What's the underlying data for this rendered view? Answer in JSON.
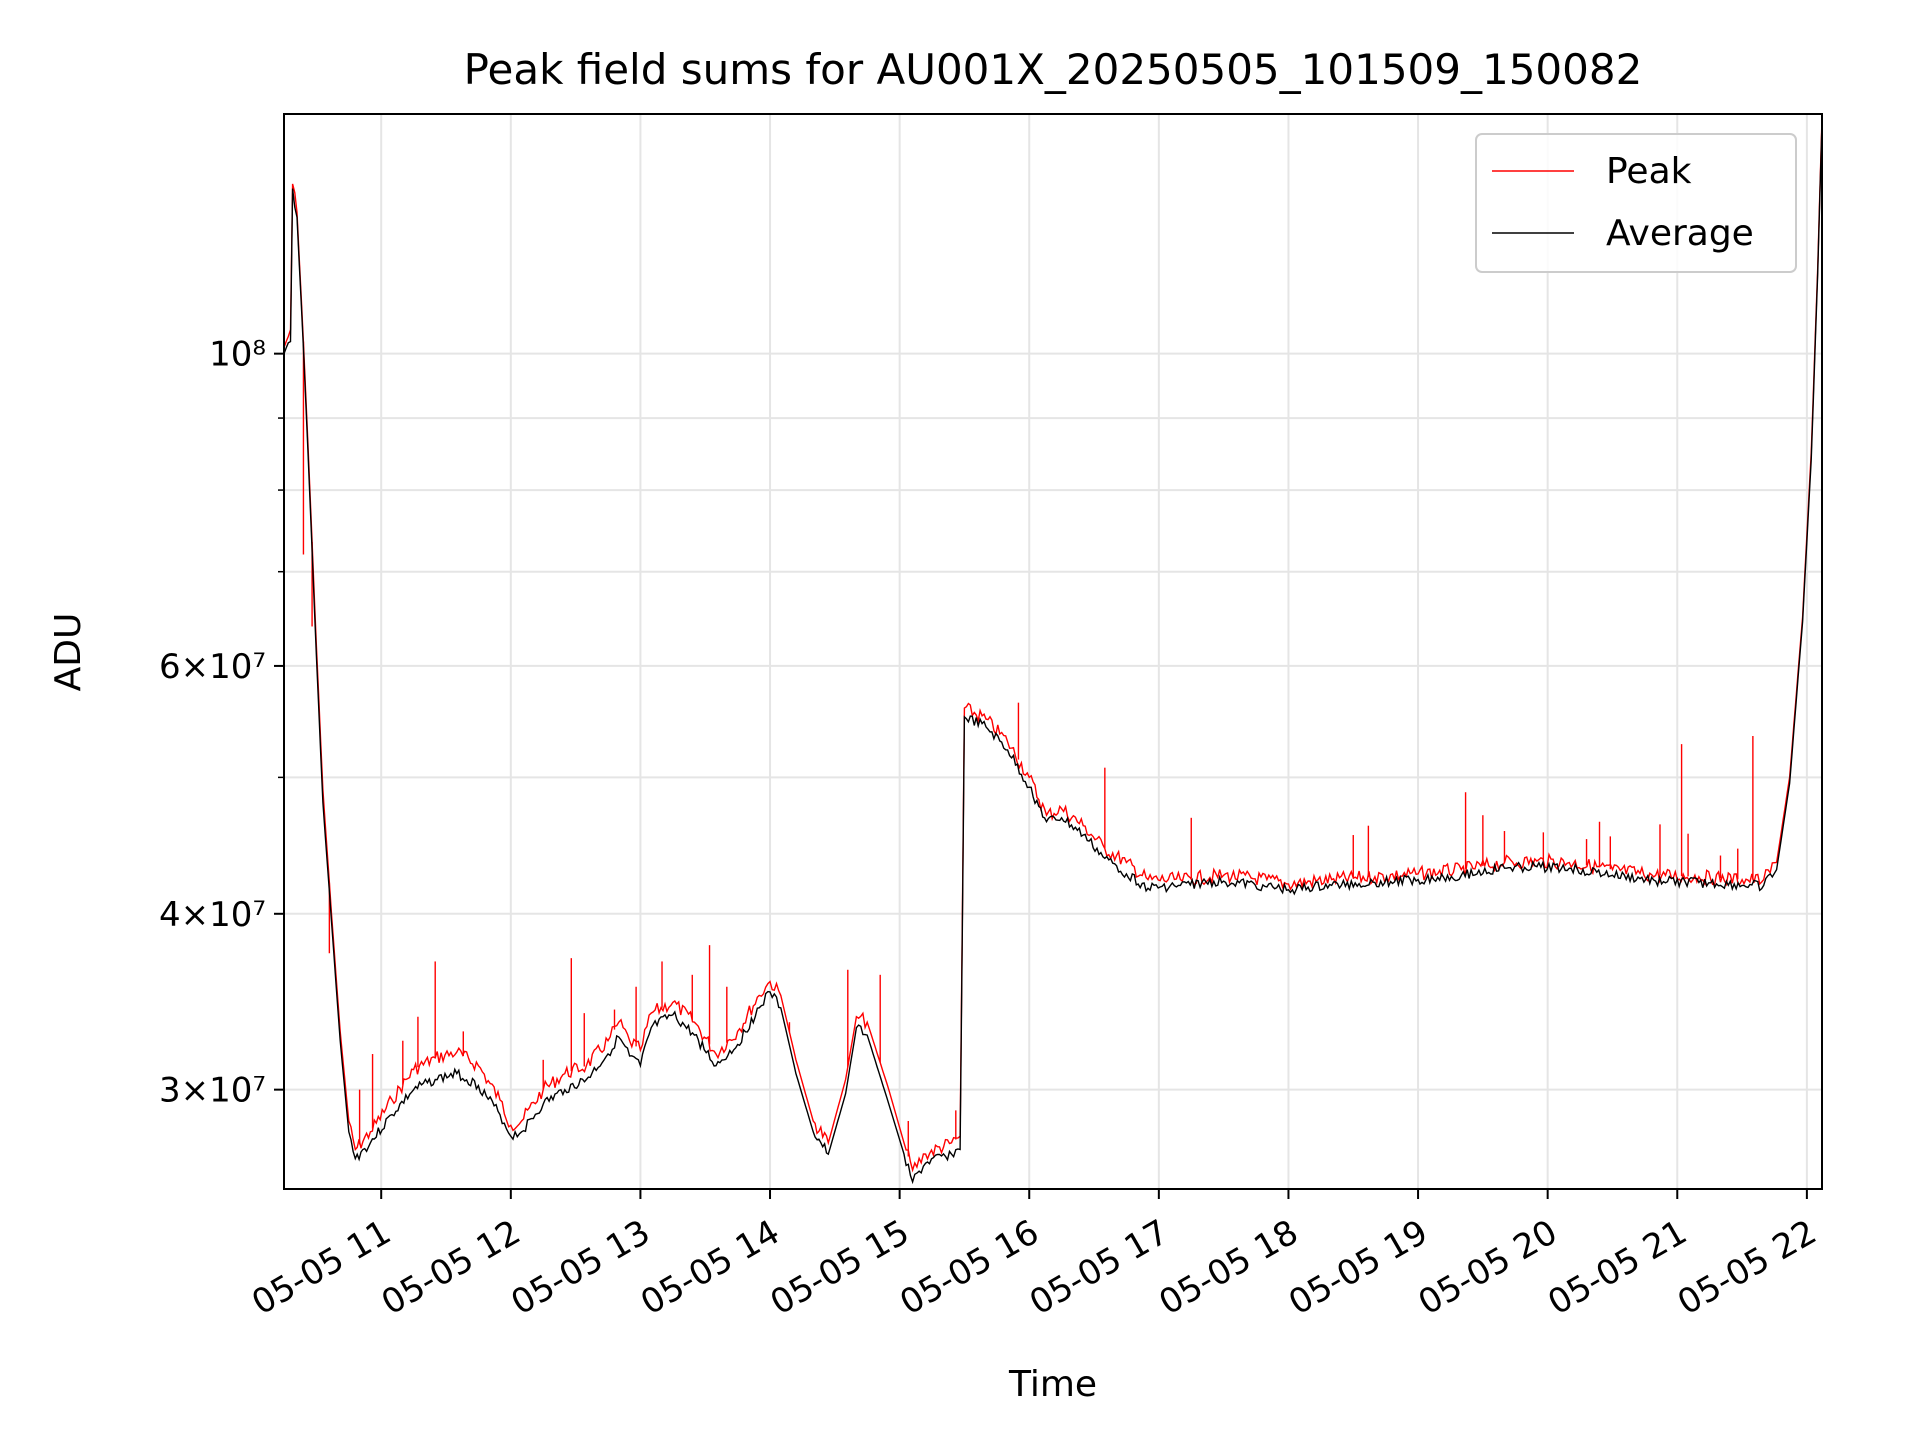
{
  "chart_data": {
    "type": "line",
    "title": "Peak field sums for AU001X_20250505_101509_150082",
    "xlabel": "Time",
    "ylabel": "ADU",
    "yscale": "log",
    "ylim": [
      25500000,
      148000000
    ],
    "xlim": [
      "2025-05-05 10:15",
      "2025-05-05 22:07"
    ],
    "grid": true,
    "legend": "top-right",
    "x_ticks": [
      {
        "t": "2025-05-05 11:00",
        "label": "05-05 11"
      },
      {
        "t": "2025-05-05 12:00",
        "label": "05-05 12"
      },
      {
        "t": "2025-05-05 13:00",
        "label": "05-05 13"
      },
      {
        "t": "2025-05-05 14:00",
        "label": "05-05 14"
      },
      {
        "t": "2025-05-05 15:00",
        "label": "05-05 15"
      },
      {
        "t": "2025-05-05 16:00",
        "label": "05-05 16"
      },
      {
        "t": "2025-05-05 17:00",
        "label": "05-05 17"
      },
      {
        "t": "2025-05-05 18:00",
        "label": "05-05 18"
      },
      {
        "t": "2025-05-05 19:00",
        "label": "05-05 19"
      },
      {
        "t": "2025-05-05 20:00",
        "label": "05-05 20"
      },
      {
        "t": "2025-05-05 21:00",
        "label": "05-05 21"
      },
      {
        "t": "2025-05-05 22:00",
        "label": "05-05 22"
      }
    ],
    "y_ticks": [
      {
        "value": 30000000,
        "label": "3×10⁷"
      },
      {
        "value": 40000000,
        "label": "4×10⁷"
      },
      {
        "value": 60000000,
        "label": "6×10⁷"
      },
      {
        "value": 100000000,
        "label": "10⁸"
      }
    ],
    "y_minor_ticks": [
      50000000,
      70000000,
      80000000,
      90000000
    ],
    "series": [
      {
        "name": "Peak",
        "color": "#ff0000",
        "points": [
          [
            "2025-05-05 10:15",
            101000000
          ],
          [
            "2025-05-05 10:18",
            104000000
          ],
          [
            "2025-05-05 10:19",
            132000000
          ],
          [
            "2025-05-05 10:21",
            126000000
          ],
          [
            "2025-05-05 10:24",
            102000000
          ],
          [
            "2025-05-05 10:27",
            80000000
          ],
          [
            "2025-05-05 10:30",
            62000000
          ],
          [
            "2025-05-05 10:33",
            49000000
          ],
          [
            "2025-05-05 10:37",
            40000000
          ],
          [
            "2025-05-05 10:41",
            33000000
          ],
          [
            "2025-05-05 10:45",
            28500000
          ],
          [
            "2025-05-05 10:48",
            27200000
          ],
          [
            "2025-05-05 10:55",
            28000000
          ],
          [
            "2025-05-05 11:05",
            29500000
          ],
          [
            "2025-05-05 11:15",
            31000000
          ],
          [
            "2025-05-05 11:25",
            31600000
          ],
          [
            "2025-05-05 11:35",
            31900000
          ],
          [
            "2025-05-05 11:45",
            31200000
          ],
          [
            "2025-05-05 11:55",
            29500000
          ],
          [
            "2025-05-05 12:00",
            28300000
          ],
          [
            "2025-05-05 12:05",
            28500000
          ],
          [
            "2025-05-05 12:15",
            30000000
          ],
          [
            "2025-05-05 12:25",
            30800000
          ],
          [
            "2025-05-05 12:35",
            31200000
          ],
          [
            "2025-05-05 12:45",
            32500000
          ],
          [
            "2025-05-05 12:50",
            33500000
          ],
          [
            "2025-05-05 12:55",
            32500000
          ],
          [
            "2025-05-05 13:00",
            32000000
          ],
          [
            "2025-05-05 13:05",
            34000000
          ],
          [
            "2025-05-05 13:15",
            34600000
          ],
          [
            "2025-05-05 13:25",
            33500000
          ],
          [
            "2025-05-05 13:35",
            31800000
          ],
          [
            "2025-05-05 13:45",
            33000000
          ],
          [
            "2025-05-05 13:55",
            35000000
          ],
          [
            "2025-05-05 14:00",
            35800000
          ],
          [
            "2025-05-05 14:05",
            35000000
          ],
          [
            "2025-05-05 14:12",
            31500000
          ],
          [
            "2025-05-05 14:20",
            28500000
          ],
          [
            "2025-05-05 14:27",
            27500000
          ],
          [
            "2025-05-05 14:35",
            30500000
          ],
          [
            "2025-05-05 14:40",
            33800000
          ],
          [
            "2025-05-05 14:45",
            33500000
          ],
          [
            "2025-05-05 14:55",
            30000000
          ],
          [
            "2025-05-05 15:02",
            27500000
          ],
          [
            "2025-05-05 15:06",
            26300000
          ],
          [
            "2025-05-05 15:12",
            27000000
          ],
          [
            "2025-05-05 15:24",
            27500000
          ],
          [
            "2025-05-05 15:28",
            27800000
          ],
          [
            "2025-05-05 15:30",
            56000000
          ],
          [
            "2025-05-05 15:40",
            55000000
          ],
          [
            "2025-05-05 15:50",
            53000000
          ],
          [
            "2025-05-05 16:00",
            50000000
          ],
          [
            "2025-05-05 16:08",
            47000000
          ],
          [
            "2025-05-05 16:15",
            47500000
          ],
          [
            "2025-05-05 16:25",
            46200000
          ],
          [
            "2025-05-05 16:35",
            44500000
          ],
          [
            "2025-05-05 16:45",
            43500000
          ],
          [
            "2025-05-05 16:55",
            42300000
          ],
          [
            "2025-05-05 17:10",
            42300000
          ],
          [
            "2025-05-05 17:30",
            42600000
          ],
          [
            "2025-05-05 17:50",
            42300000
          ],
          [
            "2025-05-05 18:00",
            42000000
          ],
          [
            "2025-05-05 18:20",
            42300000
          ],
          [
            "2025-05-05 18:40",
            42500000
          ],
          [
            "2025-05-05 19:00",
            42700000
          ],
          [
            "2025-05-05 19:20",
            43000000
          ],
          [
            "2025-05-05 19:40",
            43500000
          ],
          [
            "2025-05-05 19:55",
            43600000
          ],
          [
            "2025-05-05 20:10",
            43500000
          ],
          [
            "2025-05-05 20:30",
            43000000
          ],
          [
            "2025-05-05 20:50",
            42600000
          ],
          [
            "2025-05-05 21:10",
            42500000
          ],
          [
            "2025-05-05 21:30",
            42300000
          ],
          [
            "2025-05-05 21:40",
            42300000
          ],
          [
            "2025-05-05 21:46",
            43500000
          ],
          [
            "2025-05-05 21:52",
            50000000
          ],
          [
            "2025-05-05 21:58",
            65000000
          ],
          [
            "2025-05-05 22:02",
            85000000
          ],
          [
            "2025-05-05 22:05",
            115000000
          ],
          [
            "2025-05-05 22:07",
            147000000
          ]
        ],
        "spikes": [
          [
            "2025-05-05 10:24",
            72000000
          ],
          [
            "2025-05-05 10:28",
            64000000
          ],
          [
            "2025-05-05 10:36",
            37500000
          ],
          [
            "2025-05-05 10:50",
            30000000
          ],
          [
            "2025-05-05 10:56",
            31800000
          ],
          [
            "2025-05-05 11:10",
            32500000
          ],
          [
            "2025-05-05 11:17",
            33800000
          ],
          [
            "2025-05-05 11:25",
            37000000
          ],
          [
            "2025-05-05 11:38",
            33000000
          ],
          [
            "2025-05-05 12:15",
            31500000
          ],
          [
            "2025-05-05 12:28",
            37200000
          ],
          [
            "2025-05-05 12:34",
            34000000
          ],
          [
            "2025-05-05 12:48",
            34200000
          ],
          [
            "2025-05-05 12:58",
            35500000
          ],
          [
            "2025-05-05 13:10",
            37000000
          ],
          [
            "2025-05-05 13:24",
            36200000
          ],
          [
            "2025-05-05 13:32",
            38000000
          ],
          [
            "2025-05-05 13:40",
            35500000
          ],
          [
            "2025-05-05 14:09",
            33500000
          ],
          [
            "2025-05-05 14:36",
            36500000
          ],
          [
            "2025-05-05 14:51",
            36200000
          ],
          [
            "2025-05-05 15:04",
            28500000
          ],
          [
            "2025-05-05 15:26",
            29000000
          ],
          [
            "2025-05-05 15:55",
            56500000
          ],
          [
            "2025-05-05 16:35",
            50800000
          ],
          [
            "2025-05-05 17:15",
            46800000
          ],
          [
            "2025-05-05 18:30",
            45500000
          ],
          [
            "2025-05-05 18:37",
            46200000
          ],
          [
            "2025-05-05 19:22",
            48800000
          ],
          [
            "2025-05-05 19:30",
            47000000
          ],
          [
            "2025-05-05 19:40",
            45800000
          ],
          [
            "2025-05-05 19:58",
            45700000
          ],
          [
            "2025-05-05 20:18",
            45200000
          ],
          [
            "2025-05-05 20:24",
            46500000
          ],
          [
            "2025-05-05 20:29",
            45400000
          ],
          [
            "2025-05-05 20:52",
            46300000
          ],
          [
            "2025-05-05 21:02",
            52800000
          ],
          [
            "2025-05-05 21:05",
            45600000
          ],
          [
            "2025-05-05 21:20",
            44000000
          ],
          [
            "2025-05-05 21:28",
            44500000
          ],
          [
            "2025-05-05 21:35",
            53500000
          ]
        ]
      },
      {
        "name": "Average",
        "color": "#000000",
        "points": [
          [
            "2025-05-05 10:15",
            100000000
          ],
          [
            "2025-05-05 10:18",
            102000000
          ],
          [
            "2025-05-05 10:19",
            131000000
          ],
          [
            "2025-05-05 10:21",
            125000000
          ],
          [
            "2025-05-05 10:24",
            101000000
          ],
          [
            "2025-05-05 10:27",
            79000000
          ],
          [
            "2025-05-05 10:30",
            61000000
          ],
          [
            "2025-05-05 10:33",
            48000000
          ],
          [
            "2025-05-05 10:37",
            39500000
          ],
          [
            "2025-05-05 10:41",
            32500000
          ],
          [
            "2025-05-05 10:45",
            28000000
          ],
          [
            "2025-05-05 10:48",
            26800000
          ],
          [
            "2025-05-05 10:55",
            27500000
          ],
          [
            "2025-05-05 11:05",
            28800000
          ],
          [
            "2025-05-05 11:15",
            30000000
          ],
          [
            "2025-05-05 11:25",
            30500000
          ],
          [
            "2025-05-05 11:35",
            30800000
          ],
          [
            "2025-05-05 11:45",
            30200000
          ],
          [
            "2025-05-05 11:55",
            28800000
          ],
          [
            "2025-05-05 12:00",
            27800000
          ],
          [
            "2025-05-05 12:05",
            28000000
          ],
          [
            "2025-05-05 12:15",
            29300000
          ],
          [
            "2025-05-05 12:25",
            30000000
          ],
          [
            "2025-05-05 12:35",
            30500000
          ],
          [
            "2025-05-05 12:45",
            31800000
          ],
          [
            "2025-05-05 12:50",
            32700000
          ],
          [
            "2025-05-05 12:55",
            31700000
          ],
          [
            "2025-05-05 13:00",
            31200000
          ],
          [
            "2025-05-05 13:05",
            33200000
          ],
          [
            "2025-05-05 13:15",
            33900000
          ],
          [
            "2025-05-05 13:25",
            32800000
          ],
          [
            "2025-05-05 13:35",
            31200000
          ],
          [
            "2025-05-05 13:45",
            32300000
          ],
          [
            "2025-05-05 13:55",
            34300000
          ],
          [
            "2025-05-05 14:00",
            35200000
          ],
          [
            "2025-05-05 14:05",
            34300000
          ],
          [
            "2025-05-05 14:12",
            30800000
          ],
          [
            "2025-05-05 14:20",
            28000000
          ],
          [
            "2025-05-05 14:27",
            27000000
          ],
          [
            "2025-05-05 14:35",
            29800000
          ],
          [
            "2025-05-05 14:40",
            33200000
          ],
          [
            "2025-05-05 14:45",
            32800000
          ],
          [
            "2025-05-05 14:55",
            29300000
          ],
          [
            "2025-05-05 15:02",
            27000000
          ],
          [
            "2025-05-05 15:06",
            25800000
          ],
          [
            "2025-05-05 15:12",
            26600000
          ],
          [
            "2025-05-05 15:24",
            27000000
          ],
          [
            "2025-05-05 15:28",
            27200000
          ],
          [
            "2025-05-05 15:30",
            55200000
          ],
          [
            "2025-05-05 15:40",
            54300000
          ],
          [
            "2025-05-05 15:50",
            52300000
          ],
          [
            "2025-05-05 16:00",
            49200000
          ],
          [
            "2025-05-05 16:08",
            46500000
          ],
          [
            "2025-05-05 16:15",
            46800000
          ],
          [
            "2025-05-05 16:25",
            45500000
          ],
          [
            "2025-05-05 16:35",
            43800000
          ],
          [
            "2025-05-05 16:45",
            42700000
          ],
          [
            "2025-05-05 16:55",
            41700000
          ],
          [
            "2025-05-05 17:10",
            41900000
          ],
          [
            "2025-05-05 17:30",
            42200000
          ],
          [
            "2025-05-05 17:50",
            41800000
          ],
          [
            "2025-05-05 18:00",
            41600000
          ],
          [
            "2025-05-05 18:20",
            41900000
          ],
          [
            "2025-05-05 18:40",
            42100000
          ],
          [
            "2025-05-05 19:00",
            42300000
          ],
          [
            "2025-05-05 19:20",
            42600000
          ],
          [
            "2025-05-05 19:40",
            43100000
          ],
          [
            "2025-05-05 19:55",
            43200000
          ],
          [
            "2025-05-05 20:10",
            43100000
          ],
          [
            "2025-05-05 20:30",
            42600000
          ],
          [
            "2025-05-05 20:50",
            42200000
          ],
          [
            "2025-05-05 21:10",
            42100000
          ],
          [
            "2025-05-05 21:30",
            41900000
          ],
          [
            "2025-05-05 21:40",
            41900000
          ],
          [
            "2025-05-05 21:46",
            43000000
          ],
          [
            "2025-05-05 21:52",
            49500000
          ],
          [
            "2025-05-05 21:58",
            64500000
          ],
          [
            "2025-05-05 22:02",
            84000000
          ],
          [
            "2025-05-05 22:05",
            114000000
          ],
          [
            "2025-05-05 22:07",
            146000000
          ]
        ]
      }
    ]
  }
}
